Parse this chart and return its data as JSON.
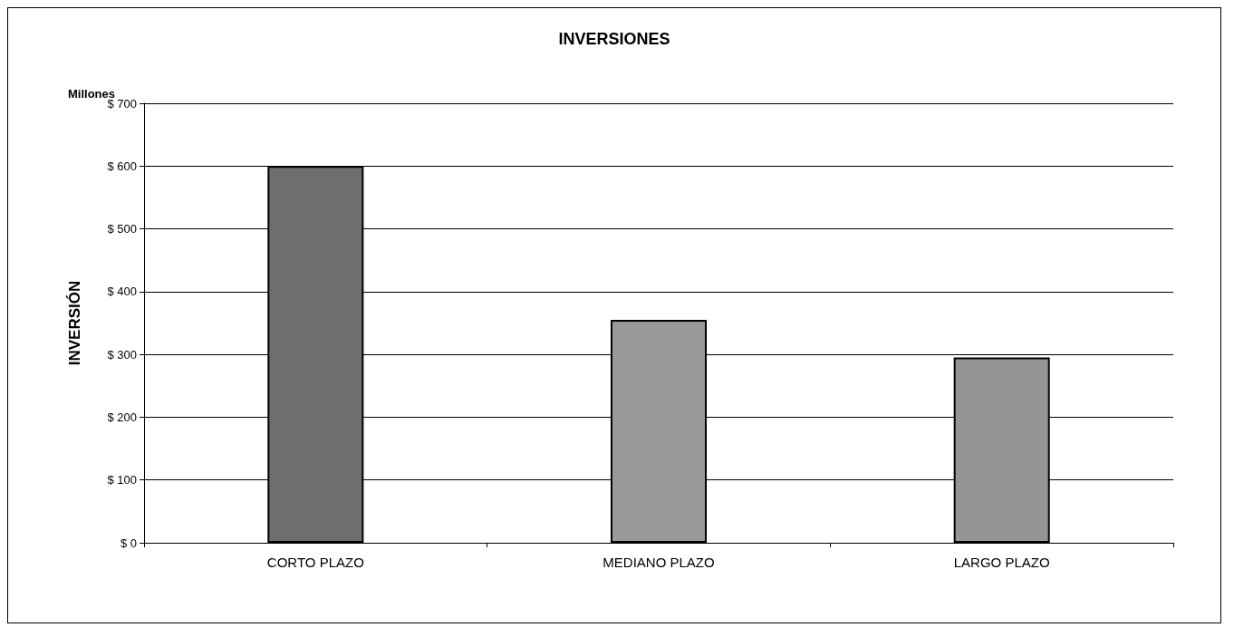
{
  "chart_data": {
    "type": "bar",
    "title": "INVERSIONES",
    "ylabel": "INVERSIÓN",
    "annotations": [
      "Millones"
    ],
    "categories": [
      "CORTO PLAZO",
      "MEDIANO PLAZO",
      "LARGO PLAZO"
    ],
    "values": [
      600,
      355,
      295
    ],
    "colors": [
      "#6e6e6e",
      "#9a9a9a",
      "#959595"
    ],
    "ylim": [
      0,
      700
    ],
    "yticks": [
      {
        "value": 0,
        "label": "$ 0"
      },
      {
        "value": 100,
        "label": "$ 100"
      },
      {
        "value": 200,
        "label": "$ 200"
      },
      {
        "value": 300,
        "label": "$ 300"
      },
      {
        "value": 400,
        "label": "$ 400"
      },
      {
        "value": 500,
        "label": "$ 500"
      },
      {
        "value": 600,
        "label": "$ 600"
      },
      {
        "value": 700,
        "label": "$ 700"
      }
    ],
    "grid": "y"
  }
}
